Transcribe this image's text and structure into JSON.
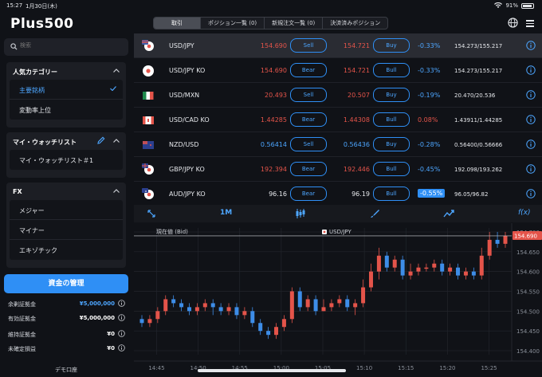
{
  "status": {
    "time": "15:27",
    "date": "1月30日(木)",
    "battery": "91%"
  },
  "brand": {
    "logo": "Plus500"
  },
  "nav": {
    "tabs": [
      "取引",
      "ポジション一覧 (0)",
      "新規注文一覧 (0)",
      "決済済みポジション"
    ]
  },
  "search": {
    "placeholder": "検索"
  },
  "panels": {
    "popular": {
      "title": "人気カテゴリー",
      "items": [
        "主要銘柄",
        "変動率上位"
      ]
    },
    "watchlist": {
      "title": "マイ・ウォッチリスト",
      "items": [
        "マイ・ウォッチリスト＃1"
      ]
    },
    "fx": {
      "title": "FX",
      "items": [
        "メジャー",
        "マイナー",
        "エキゾチック"
      ]
    }
  },
  "account": {
    "fund_button": "資金の管理",
    "rows": [
      {
        "label": "余剰証拠金",
        "value": "¥5,000,000"
      },
      {
        "label": "有効証拠金",
        "value": "¥5,000,000"
      },
      {
        "label": "維持証拠金",
        "value": "¥0"
      },
      {
        "label": "未確定損益",
        "value": "¥0"
      }
    ],
    "mode": "デモ口座"
  },
  "instruments": [
    {
      "symbol": "USD/JPY",
      "sell_price": "154.690",
      "sell_label": "Sell",
      "buy_price": "154.721",
      "buy_label": "Buy",
      "change": "-0.33%",
      "range": "154.273/155.217",
      "price_color": "#e4544a",
      "flag": "jp-us"
    },
    {
      "symbol": "USD/JPY KO",
      "sell_price": "154.690",
      "sell_label": "Bear",
      "buy_price": "154.721",
      "buy_label": "Bull",
      "change": "-0.33%",
      "range": "154.273/155.217",
      "price_color": "#e4544a",
      "flag": "jp"
    },
    {
      "symbol": "USD/MXN",
      "sell_price": "20.493",
      "sell_label": "Sell",
      "buy_price": "20.507",
      "buy_label": "Buy",
      "change": "-0.19%",
      "range": "20.470/20.536",
      "price_color": "#e4544a",
      "flag": "mx"
    },
    {
      "symbol": "USD/CAD KO",
      "sell_price": "1.44285",
      "sell_label": "Bear",
      "buy_price": "1.44308",
      "buy_label": "Bull",
      "change": "0.08%",
      "range": "1.43911/1.44285",
      "price_color": "#e4544a",
      "flag": "ca"
    },
    {
      "symbol": "NZD/USD",
      "sell_price": "0.56414",
      "sell_label": "Sell",
      "buy_price": "0.56436",
      "buy_label": "Buy",
      "change": "-0.28%",
      "range": "0.56400/0.56666",
      "price_color": "#4da6ff",
      "flag": "nz"
    },
    {
      "symbol": "GBP/JPY KO",
      "sell_price": "192.394",
      "sell_label": "Bear",
      "buy_price": "192.446",
      "buy_label": "Bull",
      "change": "-0.45%",
      "range": "192.098/193.262",
      "price_color": "#e4544a",
      "flag": "jp-gb"
    },
    {
      "symbol": "AUD/JPY KO",
      "sell_price": "96.16",
      "sell_label": "Bear",
      "buy_price": "96.19",
      "buy_label": "Bull",
      "change": "-0.55%",
      "range": "96.05/96.82",
      "price_color": "#e6e8ec",
      "flag": "jp-au"
    }
  ],
  "chart_toolbar": {
    "timeframe": "1M",
    "fx_label": "f(x)"
  },
  "chart_data": {
    "type": "candlestick",
    "symbol": "USD/JPY",
    "current_label": "現在値 (Bid)",
    "current_price": "154.690",
    "y_ticks": [
      "154.700",
      "154.650",
      "154.600",
      "154.550",
      "154.500",
      "154.450",
      "154.400"
    ],
    "ylim": [
      154.39,
      154.71
    ],
    "x_ticks": [
      "14:45",
      "14:50",
      "14:55",
      "15:00",
      "15:05",
      "15:10",
      "15:15",
      "15:20",
      "15:25"
    ],
    "candles": [
      {
        "o": 154.48,
        "c": 154.47,
        "h": 154.49,
        "l": 154.46
      },
      {
        "o": 154.47,
        "c": 154.48,
        "h": 154.49,
        "l": 154.46
      },
      {
        "o": 154.48,
        "c": 154.5,
        "h": 154.51,
        "l": 154.47
      },
      {
        "o": 154.5,
        "c": 154.53,
        "h": 154.54,
        "l": 154.49
      },
      {
        "o": 154.53,
        "c": 154.52,
        "h": 154.54,
        "l": 154.51
      },
      {
        "o": 154.52,
        "c": 154.51,
        "h": 154.53,
        "l": 154.5
      },
      {
        "o": 154.51,
        "c": 154.5,
        "h": 154.52,
        "l": 154.49
      },
      {
        "o": 154.5,
        "c": 154.51,
        "h": 154.52,
        "l": 154.49
      },
      {
        "o": 154.51,
        "c": 154.52,
        "h": 154.53,
        "l": 154.5
      },
      {
        "o": 154.52,
        "c": 154.51,
        "h": 154.53,
        "l": 154.49
      },
      {
        "o": 154.51,
        "c": 154.5,
        "h": 154.52,
        "l": 154.49
      },
      {
        "o": 154.5,
        "c": 154.51,
        "h": 154.52,
        "l": 154.49
      },
      {
        "o": 154.51,
        "c": 154.49,
        "h": 154.52,
        "l": 154.48
      },
      {
        "o": 154.49,
        "c": 154.5,
        "h": 154.51,
        "l": 154.48
      },
      {
        "o": 154.5,
        "c": 154.47,
        "h": 154.51,
        "l": 154.46
      },
      {
        "o": 154.47,
        "c": 154.45,
        "h": 154.48,
        "l": 154.44
      },
      {
        "o": 154.45,
        "c": 154.44,
        "h": 154.46,
        "l": 154.43
      },
      {
        "o": 154.44,
        "c": 154.46,
        "h": 154.47,
        "l": 154.43
      },
      {
        "o": 154.46,
        "c": 154.48,
        "h": 154.49,
        "l": 154.45
      },
      {
        "o": 154.48,
        "c": 154.55,
        "h": 154.56,
        "l": 154.47
      },
      {
        "o": 154.55,
        "c": 154.51,
        "h": 154.56,
        "l": 154.5
      },
      {
        "o": 154.51,
        "c": 154.53,
        "h": 154.54,
        "l": 154.5
      },
      {
        "o": 154.53,
        "c": 154.5,
        "h": 154.54,
        "l": 154.49
      },
      {
        "o": 154.5,
        "c": 154.51,
        "h": 154.53,
        "l": 154.5
      },
      {
        "o": 154.51,
        "c": 154.52,
        "h": 154.53,
        "l": 154.5
      },
      {
        "o": 154.52,
        "c": 154.53,
        "h": 154.54,
        "l": 154.51
      },
      {
        "o": 154.53,
        "c": 154.51,
        "h": 154.54,
        "l": 154.5
      },
      {
        "o": 154.51,
        "c": 154.52,
        "h": 154.53,
        "l": 154.49
      },
      {
        "o": 154.52,
        "c": 154.56,
        "h": 154.58,
        "l": 154.51
      },
      {
        "o": 154.56,
        "c": 154.6,
        "h": 154.62,
        "l": 154.55
      },
      {
        "o": 154.6,
        "c": 154.64,
        "h": 154.66,
        "l": 154.58
      },
      {
        "o": 154.64,
        "c": 154.61,
        "h": 154.65,
        "l": 154.6
      },
      {
        "o": 154.61,
        "c": 154.63,
        "h": 154.64,
        "l": 154.6
      },
      {
        "o": 154.63,
        "c": 154.59,
        "h": 154.64,
        "l": 154.58
      },
      {
        "o": 154.59,
        "c": 154.6,
        "h": 154.62,
        "l": 154.58
      },
      {
        "o": 154.6,
        "c": 154.61,
        "h": 154.62,
        "l": 154.59
      },
      {
        "o": 154.61,
        "c": 154.61,
        "h": 154.62,
        "l": 154.6
      },
      {
        "o": 154.61,
        "c": 154.62,
        "h": 154.63,
        "l": 154.6
      },
      {
        "o": 154.62,
        "c": 154.6,
        "h": 154.63,
        "l": 154.59
      },
      {
        "o": 154.6,
        "c": 154.61,
        "h": 154.62,
        "l": 154.59
      },
      {
        "o": 154.61,
        "c": 154.59,
        "h": 154.62,
        "l": 154.58
      },
      {
        "o": 154.59,
        "c": 154.6,
        "h": 154.61,
        "l": 154.58
      },
      {
        "o": 154.6,
        "c": 154.59,
        "h": 154.61,
        "l": 154.58
      },
      {
        "o": 154.59,
        "c": 154.64,
        "h": 154.66,
        "l": 154.58
      },
      {
        "o": 154.64,
        "c": 154.68,
        "h": 154.7,
        "l": 154.63
      },
      {
        "o": 154.68,
        "c": 154.67,
        "h": 154.7,
        "l": 154.66
      },
      {
        "o": 154.67,
        "c": 154.69,
        "h": 154.7,
        "l": 154.66
      }
    ]
  }
}
